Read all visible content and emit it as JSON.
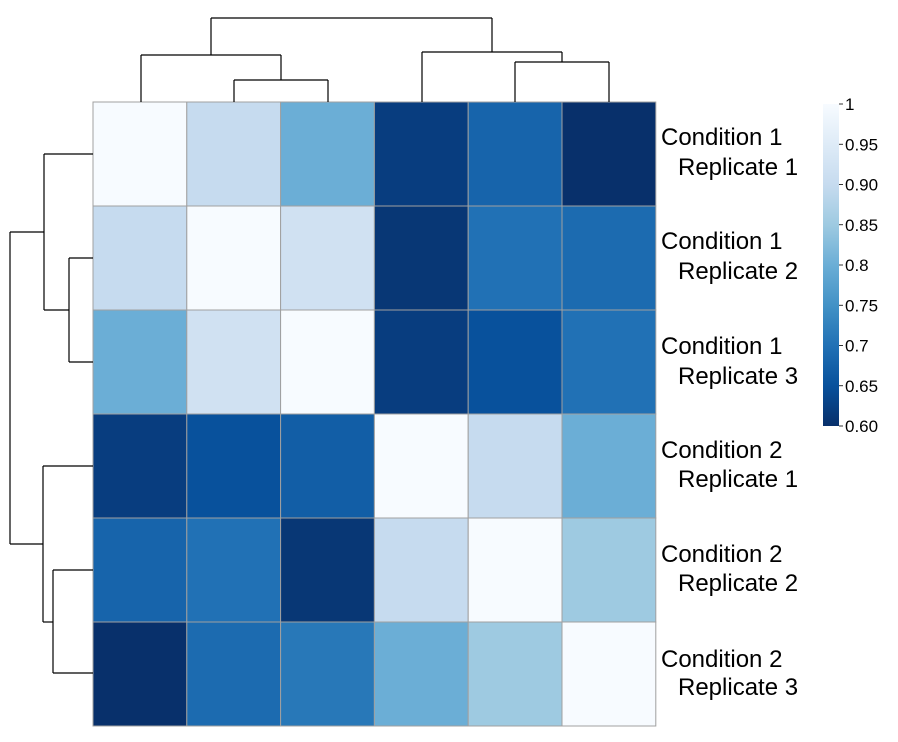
{
  "chart_data": {
    "type": "heatmap",
    "rows": [
      {
        "line1": "Condition 1",
        "line2": "Replicate 1"
      },
      {
        "line1": "Condition 1",
        "line2": "Replicate 2"
      },
      {
        "line1": "Condition 1",
        "line2": "Replicate 3"
      },
      {
        "line1": "Condition 2",
        "line2": "Replicate 1"
      },
      {
        "line1": "Condition 2",
        "line2": "Replicate 2"
      },
      {
        "line1": "Condition 2",
        "line2": "Replicate 3"
      }
    ],
    "values": [
      [
        1.0,
        0.9,
        0.8,
        0.62,
        0.68,
        0.6
      ],
      [
        0.9,
        1.0,
        0.92,
        0.61,
        0.7,
        0.69
      ],
      [
        0.8,
        0.92,
        1.0,
        0.62,
        0.65,
        0.7
      ],
      [
        0.62,
        0.65,
        0.67,
        1.0,
        0.9,
        0.8
      ],
      [
        0.68,
        0.7,
        0.61,
        0.9,
        1.0,
        0.85
      ],
      [
        0.6,
        0.69,
        0.71,
        0.8,
        0.85,
        1.0
      ]
    ],
    "colorbar": {
      "range": [
        0.6,
        1.0
      ],
      "ticks": [
        {
          "value": 1.0,
          "label": "1"
        },
        {
          "value": 0.95,
          "label": "0.95"
        },
        {
          "value": 0.9,
          "label": "0.90"
        },
        {
          "value": 0.85,
          "label": "0.85"
        },
        {
          "value": 0.8,
          "label": "0.8"
        },
        {
          "value": 0.75,
          "label": "0.75"
        },
        {
          "value": 0.7,
          "label": "0.7"
        },
        {
          "value": 0.65,
          "label": "0.65"
        },
        {
          "value": 0.6,
          "label": "0.60"
        }
      ],
      "colormap": [
        "#08306b",
        "#08519c",
        "#2171b5",
        "#4292c6",
        "#6baed6",
        "#9ecae1",
        "#c6dbef",
        "#deebf7",
        "#f7fbff"
      ]
    },
    "cluster_groups": [
      [
        "Condition 1 Replicate 1",
        "Condition 1 Replicate 2",
        "Condition 1 Replicate 3"
      ],
      [
        "Condition 2 Replicate 1",
        "Condition 2 Replicate 2",
        "Condition 2 Replicate 3"
      ]
    ],
    "grid_lines": true,
    "legend_position": "right"
  }
}
